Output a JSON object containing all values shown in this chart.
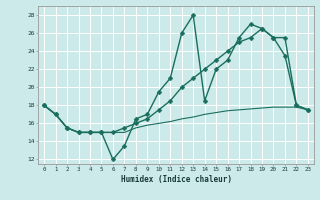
{
  "title": "",
  "xlabel": "Humidex (Indice chaleur)",
  "bg_color": "#cceaea",
  "grid_color": "#ffffff",
  "line_color": "#1a6e5e",
  "xlim": [
    -0.5,
    23.5
  ],
  "ylim": [
    11.5,
    29
  ],
  "xticks": [
    0,
    1,
    2,
    3,
    4,
    5,
    6,
    7,
    8,
    9,
    10,
    11,
    12,
    13,
    14,
    15,
    16,
    17,
    18,
    19,
    20,
    21,
    22,
    23
  ],
  "yticks": [
    12,
    14,
    16,
    18,
    20,
    22,
    24,
    26,
    28
  ],
  "series": [
    {
      "x": [
        0,
        1,
        2,
        3,
        4,
        5,
        6,
        7,
        8,
        9,
        10,
        11,
        12,
        13,
        14,
        15,
        16,
        17,
        18,
        19,
        20,
        21,
        22,
        23
      ],
      "y": [
        18,
        17,
        15.5,
        15,
        15,
        15,
        12,
        13.5,
        16.5,
        17,
        19.5,
        21,
        26,
        28,
        18.5,
        22,
        23,
        25.5,
        27,
        26.5,
        25.5,
        23.5,
        18,
        17.5
      ],
      "marker": "D",
      "markersize": 2.5,
      "linewidth": 1.0
    },
    {
      "x": [
        0,
        1,
        2,
        3,
        4,
        5,
        6,
        7,
        8,
        9,
        10,
        11,
        12,
        13,
        14,
        15,
        16,
        17,
        18,
        19,
        20,
        21,
        22,
        23
      ],
      "y": [
        18,
        17,
        15.5,
        15,
        15,
        15,
        15,
        15.5,
        16,
        16.5,
        17.5,
        18.5,
        20,
        21,
        22,
        23,
        24,
        25,
        25.5,
        26.5,
        25.5,
        25.5,
        18,
        17.5
      ],
      "marker": "D",
      "markersize": 2.5,
      "linewidth": 1.0
    },
    {
      "x": [
        0,
        1,
        2,
        3,
        4,
        5,
        6,
        7,
        8,
        9,
        10,
        11,
        12,
        13,
        14,
        15,
        16,
        17,
        18,
        19,
        20,
        21,
        22,
        23
      ],
      "y": [
        18,
        17,
        15.5,
        15,
        15,
        15,
        15,
        15,
        15.5,
        15.8,
        16.0,
        16.2,
        16.5,
        16.7,
        17.0,
        17.2,
        17.4,
        17.5,
        17.6,
        17.7,
        17.8,
        17.8,
        17.8,
        17.5
      ],
      "marker": null,
      "markersize": 0,
      "linewidth": 0.8
    }
  ]
}
